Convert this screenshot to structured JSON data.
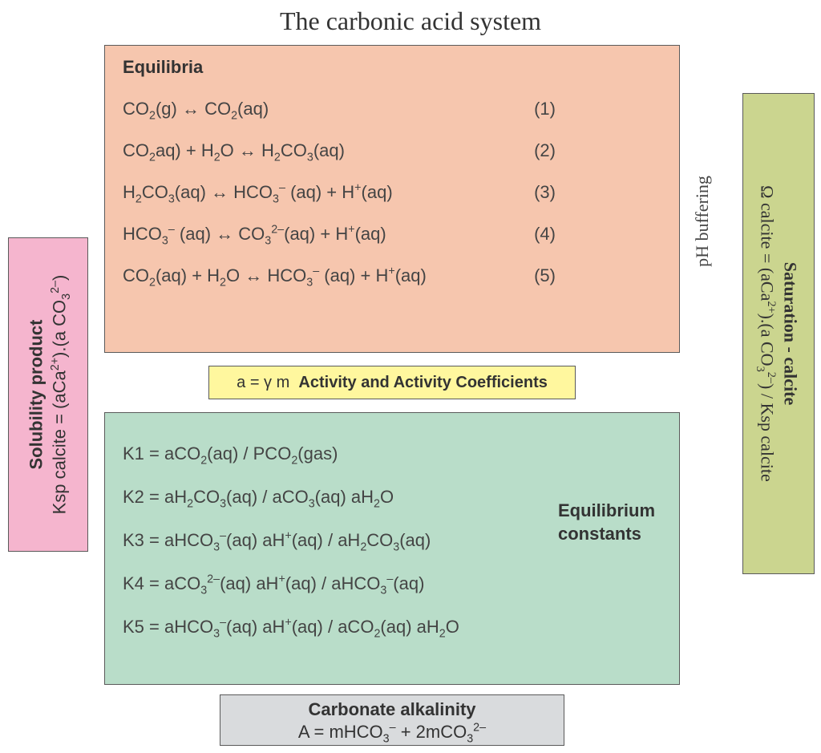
{
  "title": "The carbonic acid system",
  "colors": {
    "equilibria_bg": "#f6c6ae",
    "activity_bg": "#fff79e",
    "constants_bg": "#b9ddc9",
    "alkalinity_bg": "#d9dbdd",
    "solubility_bg": "#f5b5ce",
    "saturation_bg": "#cbd58f",
    "border": "#5a5a5a",
    "text": "#4a4a4a"
  },
  "equilibria": {
    "heading": "Equilibria",
    "rows": [
      {
        "formula": "CO₂(g) ↔ CO₂(aq)",
        "num": "(1)"
      },
      {
        "formula": "CO₂aq) + H₂O ↔ H₂CO₃(aq)",
        "num": "(2)"
      },
      {
        "formula": "H₂CO₃(aq) ↔ HCO₃⁻ (aq) + H⁺(aq)",
        "num": "(3)"
      },
      {
        "formula": "HCO₃⁻ (aq) ↔ CO₃²⁻(aq) + H⁺(aq)",
        "num": "(4)"
      },
      {
        "formula": "CO₂(aq) + H₂O ↔ HCO₃⁻ (aq) + H⁺(aq)",
        "num": "(5)"
      }
    ]
  },
  "activity": {
    "formula": "a = γ m",
    "label": "Activity and Activity Coefficients"
  },
  "constants": {
    "label": "Equilibrium constants",
    "rows": [
      "K1 = aCO₂(aq) / PCO₂(gas)",
      "K2 = aH₂CO₃(aq) / aCO₃(aq) aH₂O",
      "K3 = aHCO₃⁻(aq) aH⁺(aq) / aH₂CO₃(aq)",
      "K4 = aCO₃²⁻(aq) aH⁺(aq) / aHCO₃⁻(aq)",
      "K5 = aHCO₃⁻(aq) aH⁺(aq) / aCO₂(aq) aH₂O"
    ]
  },
  "alkalinity": {
    "heading": "Carbonate alkalinity",
    "formula": "A =  mHCO₃⁻ + 2mCO₃²⁻"
  },
  "solubility": {
    "heading": "Solubility product",
    "formula": "Ksp calcite = (aCa²⁺).(a CO₃²⁻)"
  },
  "saturation": {
    "heading": "Saturation - calcite",
    "formula": "Ω calcite = (aCa²⁺).(a CO₃²⁻) / Ksp calcite"
  },
  "ph_buffering": "pH buffering"
}
